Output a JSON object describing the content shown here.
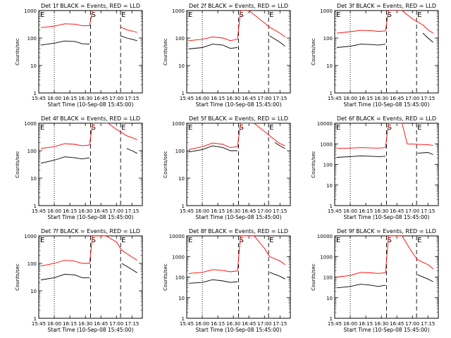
{
  "figure": {
    "x_axis_label": "Start Time (10-Sep-08 15:45:00)",
    "y_axis_label": "Counts/sec",
    "x_tick_labels": [
      "15:45",
      "16:00",
      "16:15",
      "16:30",
      "16:45",
      "17:00",
      "17:15"
    ],
    "y_tick_labels": [
      "1",
      "10",
      "100",
      "1000",
      "10000"
    ],
    "series_colors": {
      "events": "#000000",
      "lld": "#ff0000"
    },
    "marker_letters": {
      "first": "E",
      "second": "S",
      "third": "E"
    }
  },
  "chart_data": [
    {
      "type": "line",
      "title": "Det 1f BLACK = Events, RED = LLD",
      "xlabel": "Start Time (10-Sep-08 15:45:00)",
      "ylabel": "Counts/sec",
      "x_range": [
        "15:45",
        "17:25"
      ],
      "ylim": [
        1,
        1000
      ],
      "y_scale": "log",
      "x": [
        "15:47",
        "16:00",
        "16:10",
        "16:20",
        "16:27",
        "16:34",
        "16:37",
        "17:00",
        "17:04",
        "17:10",
        "17:15",
        "17:20"
      ],
      "series": [
        {
          "name": "BLACK = Events",
          "values": [
            55,
            65,
            78,
            75,
            62,
            60,
            null,
            null,
            120,
            100,
            90,
            80
          ]
        },
        {
          "name": "RED = LLD",
          "values": [
            240,
            270,
            330,
            320,
            280,
            280,
            1000,
            null,
            250,
            200,
            180,
            160
          ]
        }
      ],
      "vertical_lines": [
        {
          "time": "16:00",
          "style": "dotted"
        },
        {
          "time": "16:35",
          "style": "dashed",
          "label": "S"
        },
        {
          "time": "17:04",
          "style": "dashed",
          "label": "E"
        }
      ]
    },
    {
      "type": "line",
      "title": "Det 2f BLACK = Events, RED = LLD",
      "xlabel": "Start Time (10-Sep-08 15:45:00)",
      "ylabel": "Counts/sec",
      "x_range": [
        "15:45",
        "17:25"
      ],
      "ylim": [
        1,
        1000
      ],
      "y_scale": "log",
      "x": [
        "15:47",
        "16:00",
        "16:10",
        "16:20",
        "16:27",
        "16:34",
        "16:37",
        "16:45",
        "16:55",
        "17:05",
        "17:15",
        "17:20"
      ],
      "series": [
        {
          "name": "BLACK = Events",
          "values": [
            40,
            45,
            60,
            55,
            42,
            45,
            null,
            null,
            null,
            120,
            70,
            50
          ]
        },
        {
          "name": "RED = LLD",
          "values": [
            80,
            90,
            110,
            100,
            80,
            90,
            1000,
            1000,
            500,
            250,
            150,
            110
          ]
        }
      ],
      "vertical_lines": [
        {
          "time": "16:00",
          "style": "dotted"
        },
        {
          "time": "16:35",
          "style": "dashed",
          "label": "S"
        },
        {
          "time": "17:04",
          "style": "dashed",
          "label": "E"
        }
      ]
    },
    {
      "type": "line",
      "title": "Det 3f BLACK = Events, RED = LLD",
      "xlabel": "Start Time (10-Sep-08 15:45:00)",
      "ylabel": "Counts/sec",
      "x_range": [
        "15:45",
        "17:25"
      ],
      "ylim": [
        1,
        1000
      ],
      "y_scale": "log",
      "x": [
        "15:47",
        "16:00",
        "16:10",
        "16:20",
        "16:27",
        "16:34",
        "16:37",
        "16:50",
        "17:00",
        "17:10",
        "17:15",
        "17:20"
      ],
      "series": [
        {
          "name": "BLACK = Events",
          "values": [
            45,
            50,
            60,
            58,
            55,
            60,
            null,
            null,
            null,
            150,
            100,
            70
          ]
        },
        {
          "name": "RED = LLD",
          "values": [
            150,
            170,
            190,
            185,
            175,
            180,
            1000,
            1000,
            500,
            300,
            200,
            150
          ]
        }
      ],
      "vertical_lines": [
        {
          "time": "16:00",
          "style": "dotted"
        },
        {
          "time": "16:35",
          "style": "dashed",
          "label": "S"
        },
        {
          "time": "17:04",
          "style": "dashed",
          "label": "E"
        }
      ]
    },
    {
      "type": "line",
      "title": "Det 4f BLACK = Events, RED = LLD",
      "xlabel": "Start Time (10-Sep-08 15:45:00)",
      "ylabel": "Counts/sec",
      "x_range": [
        "15:45",
        "17:25"
      ],
      "ylim": [
        1,
        1000
      ],
      "y_scale": "log",
      "x": [
        "15:47",
        "16:00",
        "16:10",
        "16:20",
        "16:27",
        "16:34",
        "16:37",
        "16:52",
        "17:00",
        "17:10",
        "17:15",
        "17:20"
      ],
      "series": [
        {
          "name": "BLACK = Events",
          "values": [
            35,
            45,
            60,
            55,
            50,
            55,
            null,
            null,
            null,
            120,
            100,
            80
          ]
        },
        {
          "name": "RED = LLD",
          "values": [
            120,
            140,
            180,
            170,
            150,
            160,
            1000,
            1000,
            600,
            350,
            300,
            250
          ]
        }
      ],
      "vertical_lines": [
        {
          "time": "16:00",
          "style": "dotted"
        },
        {
          "time": "16:35",
          "style": "dashed",
          "label": "S"
        },
        {
          "time": "17:04",
          "style": "dashed",
          "label": "E"
        }
      ]
    },
    {
      "type": "line",
      "title": "Det 5f BLACK = Events, RED = LLD",
      "xlabel": "Start Time (10-Sep-08 15:45:00)",
      "ylabel": "Counts/sec",
      "x_range": [
        "15:45",
        "17:25"
      ],
      "ylim": [
        1,
        1000
      ],
      "y_scale": "log",
      "x": [
        "15:47",
        "16:00",
        "16:10",
        "16:20",
        "16:27",
        "16:34",
        "16:37",
        "16:50",
        "17:00",
        "17:10",
        "17:15",
        "17:20"
      ],
      "series": [
        {
          "name": "BLACK = Events",
          "values": [
            90,
            110,
            150,
            130,
            100,
            100,
            null,
            null,
            null,
            200,
            150,
            120
          ]
        },
        {
          "name": "RED = LLD",
          "values": [
            110,
            140,
            190,
            170,
            130,
            140,
            1000,
            1000,
            500,
            250,
            180,
            150
          ]
        }
      ],
      "vertical_lines": [
        {
          "time": "16:00",
          "style": "dotted"
        },
        {
          "time": "16:35",
          "style": "dashed",
          "label": "S"
        },
        {
          "time": "17:04",
          "style": "dashed",
          "label": "E"
        }
      ]
    },
    {
      "type": "line",
      "title": "Det 6f BLACK = Events, RED = LLD",
      "xlabel": "Start Time (10-Sep-08 15:45:00)",
      "ylabel": "Counts/sec",
      "x_range": [
        "15:45",
        "17:25"
      ],
      "ylim": [
        1,
        10000
      ],
      "y_scale": "log",
      "x": [
        "15:47",
        "16:00",
        "16:10",
        "16:20",
        "16:27",
        "16:34",
        "16:37",
        "16:50",
        "16:55",
        "17:05",
        "17:15",
        "17:20"
      ],
      "series": [
        {
          "name": "BLACK = Events",
          "values": [
            220,
            240,
            260,
            250,
            240,
            250,
            null,
            null,
            null,
            350,
            380,
            300
          ]
        },
        {
          "name": "RED = LLD",
          "values": [
            600,
            620,
            650,
            630,
            620,
            650,
            10000,
            10000,
            1000,
            950,
            900,
            850
          ]
        }
      ],
      "vertical_lines": [
        {
          "time": "16:00",
          "style": "dotted"
        },
        {
          "time": "16:35",
          "style": "dashed",
          "label": "S"
        },
        {
          "time": "17:04",
          "style": "dashed",
          "label": "E"
        }
      ]
    },
    {
      "type": "line",
      "title": "Det 7f BLACK = Events, RED = LLD",
      "xlabel": "Start Time (10-Sep-08 15:45:00)",
      "ylabel": "Counts/sec",
      "x_range": [
        "15:45",
        "17:25"
      ],
      "ylim": [
        1,
        1000
      ],
      "y_scale": "log",
      "x": [
        "15:47",
        "16:00",
        "16:10",
        "16:20",
        "16:27",
        "16:34",
        "16:37",
        "16:50",
        "17:00",
        "17:05",
        "17:15",
        "17:20"
      ],
      "series": [
        {
          "name": "BLACK = Events",
          "values": [
            25,
            30,
            40,
            38,
            30,
            30,
            null,
            null,
            null,
            100,
            60,
            45
          ]
        },
        {
          "name": "RED = LLD",
          "values": [
            80,
            100,
            130,
            120,
            100,
            100,
            1000,
            1000,
            600,
            300,
            170,
            130
          ]
        }
      ],
      "vertical_lines": [
        {
          "time": "16:00",
          "style": "dotted"
        },
        {
          "time": "16:35",
          "style": "dashed",
          "label": "S"
        },
        {
          "time": "17:04",
          "style": "dashed",
          "label": "E"
        }
      ]
    },
    {
      "type": "line",
      "title": "Det 8f BLACK = Events, RED = LLD",
      "xlabel": "Start Time (10-Sep-08 15:45:00)",
      "ylabel": "Counts/sec",
      "x_range": [
        "15:45",
        "17:25"
      ],
      "ylim": [
        1,
        10000
      ],
      "y_scale": "log",
      "x": [
        "15:47",
        "16:00",
        "16:10",
        "16:20",
        "16:27",
        "16:34",
        "16:37",
        "16:50",
        "17:00",
        "17:05",
        "17:15",
        "17:20"
      ],
      "series": [
        {
          "name": "BLACK = Events",
          "values": [
            50,
            55,
            75,
            65,
            55,
            60,
            null,
            null,
            null,
            170,
            110,
            80
          ]
        },
        {
          "name": "RED = LLD",
          "values": [
            150,
            170,
            230,
            210,
            180,
            200,
            10000,
            10000,
            2500,
            1000,
            600,
            400
          ]
        }
      ],
      "vertical_lines": [
        {
          "time": "16:00",
          "style": "dotted"
        },
        {
          "time": "16:35",
          "style": "dashed",
          "label": "S"
        },
        {
          "time": "17:04",
          "style": "dashed",
          "label": "E"
        }
      ]
    },
    {
      "type": "line",
      "title": "Det 9f BLACK = Events, RED = LLD",
      "xlabel": "Start Time (10-Sep-08 15:45:00)",
      "ylabel": "Counts/sec",
      "x_range": [
        "15:45",
        "17:25"
      ],
      "ylim": [
        1,
        10000
      ],
      "y_scale": "log",
      "x": [
        "15:47",
        "16:00",
        "16:10",
        "16:20",
        "16:27",
        "16:34",
        "16:37",
        "16:50",
        "17:00",
        "17:05",
        "17:15",
        "17:20"
      ],
      "series": [
        {
          "name": "BLACK = Events",
          "values": [
            30,
            35,
            45,
            40,
            35,
            40,
            null,
            null,
            null,
            130,
            80,
            60
          ]
        },
        {
          "name": "RED = LLD",
          "values": [
            100,
            120,
            170,
            160,
            150,
            160,
            10000,
            10000,
            1500,
            700,
            400,
            250
          ]
        }
      ],
      "vertical_lines": [
        {
          "time": "16:00",
          "style": "dotted"
        },
        {
          "time": "16:35",
          "style": "dashed",
          "label": "S"
        },
        {
          "time": "17:04",
          "style": "dashed",
          "label": "E"
        }
      ]
    }
  ]
}
